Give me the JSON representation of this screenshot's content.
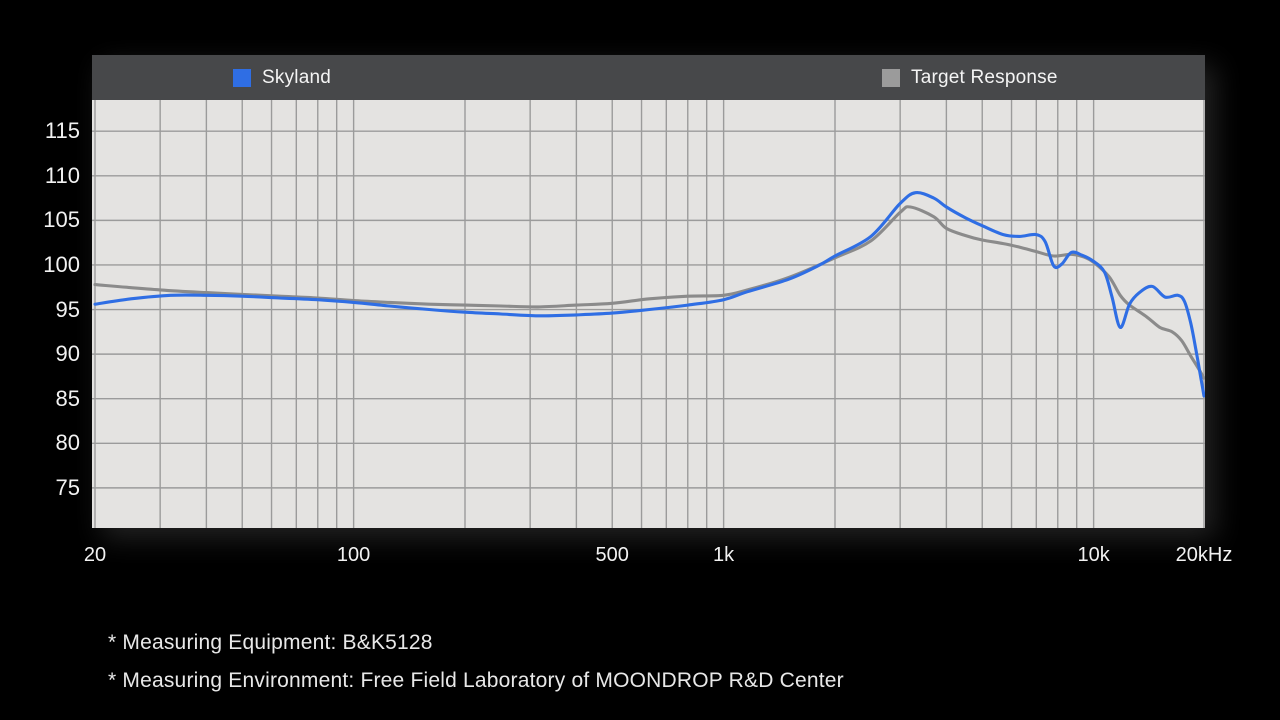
{
  "page": {
    "background": "#000000"
  },
  "legend": {
    "skyland": {
      "label": "Skyland",
      "color": "#2f6ee4"
    },
    "target": {
      "label": "Target Response",
      "color": "#9b9b9b"
    }
  },
  "footer": {
    "line1": "* Measuring Equipment: B&K5128",
    "line2": "* Measuring Environment: Free Field Laboratory of MOONDROP R&D Center"
  },
  "chart_data": {
    "type": "line",
    "title": "",
    "x_scale": "log",
    "x_range_hz": [
      20,
      20000
    ],
    "y_range_db": [
      70.5,
      118.5
    ],
    "grid": true,
    "grid_color": "#9b9b9b",
    "plot_background": "#e4e3e1",
    "header_background": "#47484a",
    "y_gridlines_db": [
      115,
      110,
      105,
      100,
      95,
      90,
      85,
      80,
      75
    ],
    "y_tick_labels": [
      "115",
      "110",
      "105",
      "100",
      "95",
      "90",
      "85",
      "80",
      "75"
    ],
    "x_gridlines_hz": [
      20,
      30,
      40,
      50,
      60,
      70,
      80,
      90,
      100,
      200,
      300,
      400,
      500,
      600,
      700,
      800,
      900,
      1000,
      2000,
      3000,
      4000,
      5000,
      6000,
      7000,
      8000,
      9000,
      10000,
      20000
    ],
    "x_ticks": [
      {
        "hz": 20,
        "label": "20"
      },
      {
        "hz": 100,
        "label": "100"
      },
      {
        "hz": 500,
        "label": "500"
      },
      {
        "hz": 1000,
        "label": "1k"
      },
      {
        "hz": 10000,
        "label": "10k"
      },
      {
        "hz": 20000,
        "label": "20kHz"
      }
    ],
    "legend_position": "top",
    "series": [
      {
        "name": "Target Response",
        "color": "#8b8b8b",
        "points": [
          [
            20,
            97.8
          ],
          [
            30,
            97.2
          ],
          [
            40,
            96.9
          ],
          [
            50,
            96.7
          ],
          [
            63,
            96.5
          ],
          [
            80,
            96.3
          ],
          [
            100,
            96.0
          ],
          [
            125,
            95.8
          ],
          [
            160,
            95.6
          ],
          [
            200,
            95.5
          ],
          [
            250,
            95.4
          ],
          [
            315,
            95.3
          ],
          [
            400,
            95.5
          ],
          [
            500,
            95.7
          ],
          [
            630,
            96.2
          ],
          [
            800,
            96.5
          ],
          [
            1000,
            96.6
          ],
          [
            1160,
            97.2
          ],
          [
            1500,
            98.6
          ],
          [
            2000,
            100.8
          ],
          [
            2500,
            102.7
          ],
          [
            3000,
            105.9
          ],
          [
            3200,
            106.5
          ],
          [
            3700,
            105.4
          ],
          [
            4000,
            104.1
          ],
          [
            4500,
            103.3
          ],
          [
            5000,
            102.8
          ],
          [
            5700,
            102.4
          ],
          [
            6300,
            102.0
          ],
          [
            7000,
            101.5
          ],
          [
            7800,
            101.0
          ],
          [
            8700,
            101.2
          ],
          [
            9400,
            100.9
          ],
          [
            10000,
            100.3
          ],
          [
            11000,
            98.7
          ],
          [
            11800,
            96.6
          ],
          [
            12500,
            95.5
          ],
          [
            13900,
            94.2
          ],
          [
            15100,
            93.0
          ],
          [
            16300,
            92.5
          ],
          [
            17300,
            91.5
          ],
          [
            18300,
            89.8
          ],
          [
            19200,
            88.4
          ],
          [
            20000,
            87.3
          ]
        ]
      },
      {
        "name": "Skyland",
        "color": "#2f6ee4",
        "points": [
          [
            20,
            95.6
          ],
          [
            25,
            96.2
          ],
          [
            32,
            96.6
          ],
          [
            40,
            96.6
          ],
          [
            50,
            96.5
          ],
          [
            63,
            96.3
          ],
          [
            80,
            96.1
          ],
          [
            100,
            95.8
          ],
          [
            125,
            95.4
          ],
          [
            160,
            95.0
          ],
          [
            200,
            94.7
          ],
          [
            250,
            94.5
          ],
          [
            315,
            94.3
          ],
          [
            400,
            94.4
          ],
          [
            500,
            94.6
          ],
          [
            630,
            95.0
          ],
          [
            800,
            95.5
          ],
          [
            1000,
            96.1
          ],
          [
            1160,
            97.0
          ],
          [
            1500,
            98.4
          ],
          [
            1800,
            99.9
          ],
          [
            2000,
            101.0
          ],
          [
            2500,
            103.2
          ],
          [
            3000,
            106.9
          ],
          [
            3300,
            108.1
          ],
          [
            3700,
            107.5
          ],
          [
            4000,
            106.5
          ],
          [
            4500,
            105.3
          ],
          [
            5000,
            104.4
          ],
          [
            5700,
            103.4
          ],
          [
            6300,
            103.2
          ],
          [
            7000,
            103.4
          ],
          [
            7400,
            102.6
          ],
          [
            7800,
            99.9
          ],
          [
            8200,
            100.1
          ],
          [
            8700,
            101.4
          ],
          [
            9300,
            101.1
          ],
          [
            10000,
            100.4
          ],
          [
            10700,
            99.2
          ],
          [
            11200,
            96.5
          ],
          [
            11800,
            93.0
          ],
          [
            12500,
            95.6
          ],
          [
            13300,
            96.9
          ],
          [
            14400,
            97.6
          ],
          [
            15600,
            96.4
          ],
          [
            16900,
            96.6
          ],
          [
            17600,
            95.9
          ],
          [
            18300,
            93.5
          ],
          [
            18900,
            90.5
          ],
          [
            19500,
            87.3
          ],
          [
            20000,
            85.3
          ]
        ]
      }
    ]
  }
}
